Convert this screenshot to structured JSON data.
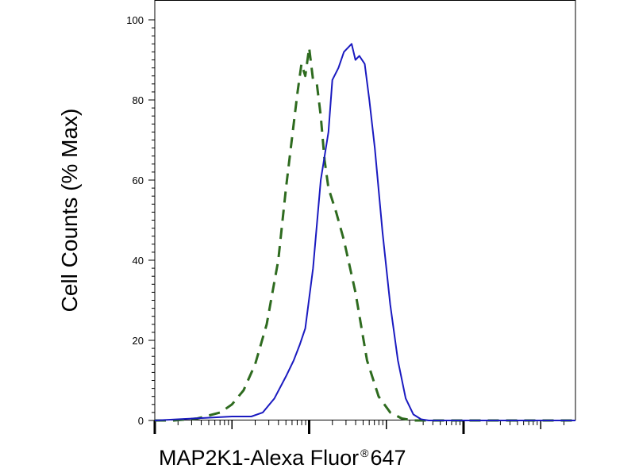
{
  "chart_data": {
    "type": "line",
    "ylabel": "Cell Counts (% Max)",
    "xlabel": {
      "main": "MAP2K1-Alexa Fluor",
      "mark": "®",
      "suffix": "647"
    },
    "ylim": [
      0,
      100
    ],
    "xlim": [
      0,
      5.45
    ],
    "x_scale": "log",
    "y_ticks": [
      0,
      20,
      40,
      60,
      80,
      100
    ],
    "x_major_ticks": [
      0,
      2,
      4
    ],
    "grid": false,
    "legend": "none",
    "series": [
      {
        "style": "dashed",
        "color": "#2e6b1f",
        "x": [
          0.0,
          0.25,
          0.55,
          0.85,
          1.0,
          1.15,
          1.3,
          1.45,
          1.6,
          1.7,
          1.8,
          1.85,
          1.9,
          1.95,
          2.0,
          2.05,
          2.1,
          2.15,
          2.2,
          2.25,
          2.35,
          2.45,
          2.6,
          2.75,
          2.9,
          3.05,
          3.2,
          3.35,
          3.5,
          4.0,
          4.5,
          5.0,
          5.45
        ],
        "y": [
          0,
          0,
          0.5,
          2,
          4,
          7.5,
          14,
          24,
          40,
          58,
          74,
          82,
          89,
          86,
          93,
          85,
          84,
          76,
          65,
          58,
          52,
          45,
          32,
          15,
          6,
          2,
          0.5,
          0,
          0,
          0,
          0,
          0,
          0
        ]
      },
      {
        "style": "solid",
        "color": "#1a1ac0",
        "x": [
          0.0,
          0.5,
          1.0,
          1.25,
          1.4,
          1.55,
          1.7,
          1.8,
          1.88,
          1.95,
          2.05,
          2.15,
          2.25,
          2.3,
          2.38,
          2.45,
          2.55,
          2.6,
          2.65,
          2.72,
          2.78,
          2.85,
          2.95,
          3.05,
          3.15,
          3.25,
          3.35,
          3.45,
          3.55,
          3.65,
          3.8,
          4.0,
          4.5,
          5.0,
          5.45
        ],
        "y": [
          0,
          0.5,
          1,
          1,
          2,
          5.5,
          11,
          15,
          19,
          23,
          38,
          60,
          72,
          85,
          88,
          92,
          94,
          90,
          91,
          89,
          80,
          68,
          47,
          29,
          15,
          5.5,
          1.5,
          0.3,
          0,
          0,
          0,
          0,
          0,
          0,
          0
        ]
      }
    ]
  }
}
